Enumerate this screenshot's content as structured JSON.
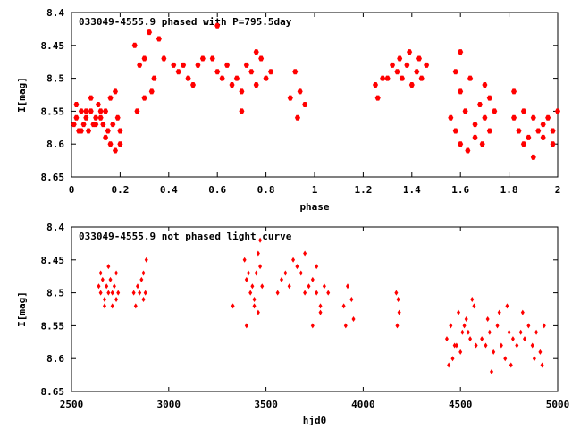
{
  "chart_data": [
    {
      "type": "scatter",
      "title": "033049-4555.9 phased with P=795.5day",
      "xlabel": "phase",
      "ylabel": "I[mag]",
      "xlim": [
        0,
        2
      ],
      "ylim": [
        8.65,
        8.4
      ],
      "y_inverted": true,
      "xticks": [
        "0",
        "0.2",
        "0.4",
        "0.6",
        "0.8",
        "1",
        "1.2",
        "1.4",
        "1.6",
        "1.8",
        "2"
      ],
      "yticks": [
        "8.4",
        "8.45",
        "8.5",
        "8.55",
        "8.6",
        "8.65"
      ],
      "grid": false,
      "marker_color": "#ff0000",
      "marker": "filled-hexagon",
      "series": [
        {
          "points": [
            [
              0.01,
              8.57
            ],
            [
              0.02,
              8.56
            ],
            [
              0.03,
              8.58
            ],
            [
              0.04,
              8.55
            ],
            [
              0.05,
              8.57
            ],
            [
              0.06,
              8.56
            ],
            [
              0.07,
              8.58
            ],
            [
              0.08,
              8.55
            ],
            [
              0.09,
              8.57
            ],
            [
              0.1,
              8.56
            ],
            [
              0.11,
              8.54
            ],
            [
              0.12,
              8.56
            ],
            [
              0.13,
              8.57
            ],
            [
              0.14,
              8.55
            ],
            [
              0.15,
              8.58
            ],
            [
              0.16,
              8.53
            ],
            [
              0.17,
              8.57
            ],
            [
              0.18,
              8.52
            ],
            [
              0.19,
              8.56
            ],
            [
              0.2,
              8.58
            ],
            [
              0.02,
              8.54
            ],
            [
              0.04,
              8.58
            ],
            [
              0.06,
              8.55
            ],
            [
              0.08,
              8.53
            ],
            [
              0.1,
              8.57
            ],
            [
              0.12,
              8.55
            ],
            [
              0.14,
              8.59
            ],
            [
              0.16,
              8.6
            ],
            [
              0.18,
              8.61
            ],
            [
              0.2,
              8.6
            ],
            [
              0.26,
              8.45
            ],
            [
              0.28,
              8.48
            ],
            [
              0.3,
              8.47
            ],
            [
              0.32,
              8.43
            ],
            [
              0.34,
              8.5
            ],
            [
              0.36,
              8.44
            ],
            [
              0.38,
              8.47
            ],
            [
              0.3,
              8.53
            ],
            [
              0.33,
              8.52
            ],
            [
              0.27,
              8.55
            ],
            [
              0.42,
              8.48
            ],
            [
              0.44,
              8.49
            ],
            [
              0.46,
              8.48
            ],
            [
              0.48,
              8.5
            ],
            [
              0.5,
              8.51
            ],
            [
              0.52,
              8.48
            ],
            [
              0.54,
              8.47
            ],
            [
              0.58,
              8.47
            ],
            [
              0.6,
              8.49
            ],
            [
              0.62,
              8.5
            ],
            [
              0.64,
              8.48
            ],
            [
              0.66,
              8.51
            ],
            [
              0.68,
              8.5
            ],
            [
              0.7,
              8.52
            ],
            [
              0.72,
              8.48
            ],
            [
              0.74,
              8.49
            ],
            [
              0.76,
              8.51
            ],
            [
              0.78,
              8.47
            ],
            [
              0.8,
              8.5
            ],
            [
              0.82,
              8.49
            ],
            [
              0.6,
              8.42
            ],
            [
              0.7,
              8.55
            ],
            [
              0.76,
              8.46
            ],
            [
              0.9,
              8.53
            ],
            [
              0.92,
              8.49
            ],
            [
              0.94,
              8.52
            ],
            [
              0.96,
              8.54
            ],
            [
              0.93,
              8.56
            ],
            [
              1.25,
              8.51
            ],
            [
              1.26,
              8.53
            ],
            [
              1.28,
              8.5
            ],
            [
              1.3,
              8.5
            ],
            [
              1.32,
              8.48
            ],
            [
              1.34,
              8.49
            ],
            [
              1.36,
              8.5
            ],
            [
              1.38,
              8.48
            ],
            [
              1.4,
              8.51
            ],
            [
              1.42,
              8.49
            ],
            [
              1.44,
              8.5
            ],
            [
              1.46,
              8.48
            ],
            [
              1.35,
              8.47
            ],
            [
              1.39,
              8.46
            ],
            [
              1.43,
              8.47
            ],
            [
              1.56,
              8.56
            ],
            [
              1.58,
              8.58
            ],
            [
              1.6,
              8.52
            ],
            [
              1.62,
              8.55
            ],
            [
              1.64,
              8.5
            ],
            [
              1.66,
              8.57
            ],
            [
              1.68,
              8.54
            ],
            [
              1.7,
              8.56
            ],
            [
              1.72,
              8.53
            ],
            [
              1.74,
              8.55
            ],
            [
              1.6,
              8.6
            ],
            [
              1.63,
              8.61
            ],
            [
              1.66,
              8.59
            ],
            [
              1.69,
              8.6
            ],
            [
              1.72,
              8.58
            ],
            [
              1.6,
              8.46
            ],
            [
              1.58,
              8.49
            ],
            [
              1.7,
              8.51
            ],
            [
              1.82,
              8.56
            ],
            [
              1.84,
              8.58
            ],
            [
              1.86,
              8.55
            ],
            [
              1.88,
              8.59
            ],
            [
              1.9,
              8.56
            ],
            [
              1.92,
              8.58
            ],
            [
              1.94,
              8.57
            ],
            [
              1.96,
              8.56
            ],
            [
              1.98,
              8.58
            ],
            [
              2.0,
              8.55
            ],
            [
              1.82,
              8.52
            ],
            [
              1.86,
              8.6
            ],
            [
              1.9,
              8.62
            ],
            [
              1.94,
              8.59
            ],
            [
              1.98,
              8.6
            ]
          ]
        }
      ]
    },
    {
      "type": "scatter",
      "title": "033049-4555.9 not phased light curve",
      "xlabel": "hjd0",
      "ylabel": "I[mag]",
      "xlim": [
        2500,
        5000
      ],
      "ylim": [
        8.65,
        8.4
      ],
      "y_inverted": true,
      "xticks": [
        "2500",
        "3000",
        "3500",
        "4000",
        "4500",
        "5000"
      ],
      "yticks": [
        "8.4",
        "8.45",
        "8.5",
        "8.55",
        "8.6",
        "8.65"
      ],
      "grid": false,
      "marker_color": "#ff0000",
      "marker": "filled-diamond",
      "series": [
        {
          "points": [
            [
              2640,
              8.49
            ],
            [
              2650,
              8.5
            ],
            [
              2660,
              8.48
            ],
            [
              2670,
              8.51
            ],
            [
              2680,
              8.49
            ],
            [
              2690,
              8.5
            ],
            [
              2700,
              8.48
            ],
            [
              2710,
              8.5
            ],
            [
              2720,
              8.49
            ],
            [
              2730,
              8.51
            ],
            [
              2650,
              8.47
            ],
            [
              2670,
              8.52
            ],
            [
              2690,
              8.46
            ],
            [
              2710,
              8.52
            ],
            [
              2730,
              8.47
            ],
            [
              2740,
              8.5
            ],
            [
              2820,
              8.5
            ],
            [
              2830,
              8.52
            ],
            [
              2840,
              8.49
            ],
            [
              2850,
              8.5
            ],
            [
              2860,
              8.48
            ],
            [
              2870,
              8.51
            ],
            [
              2880,
              8.5
            ],
            [
              2885,
              8.45
            ],
            [
              2870,
              8.47
            ],
            [
              3330,
              8.52
            ],
            [
              3390,
              8.45
            ],
            [
              3400,
              8.48
            ],
            [
              3410,
              8.47
            ],
            [
              3420,
              8.5
            ],
            [
              3430,
              8.49
            ],
            [
              3440,
              8.51
            ],
            [
              3450,
              8.47
            ],
            [
              3460,
              8.44
            ],
            [
              3470,
              8.46
            ],
            [
              3480,
              8.49
            ],
            [
              3400,
              8.55
            ],
            [
              3440,
              8.52
            ],
            [
              3460,
              8.53
            ],
            [
              3470,
              8.42
            ],
            [
              3560,
              8.5
            ],
            [
              3580,
              8.48
            ],
            [
              3600,
              8.47
            ],
            [
              3620,
              8.49
            ],
            [
              3640,
              8.45
            ],
            [
              3660,
              8.46
            ],
            [
              3680,
              8.47
            ],
            [
              3700,
              8.5
            ],
            [
              3720,
              8.49
            ],
            [
              3740,
              8.48
            ],
            [
              3760,
              8.5
            ],
            [
              3780,
              8.52
            ],
            [
              3800,
              8.49
            ],
            [
              3820,
              8.5
            ],
            [
              3740,
              8.55
            ],
            [
              3780,
              8.53
            ],
            [
              3700,
              8.44
            ],
            [
              3760,
              8.46
            ],
            [
              3900,
              8.52
            ],
            [
              3920,
              8.49
            ],
            [
              3940,
              8.51
            ],
            [
              3950,
              8.54
            ],
            [
              3910,
              8.55
            ],
            [
              4170,
              8.5
            ],
            [
              4180,
              8.51
            ],
            [
              4175,
              8.55
            ],
            [
              4185,
              8.53
            ],
            [
              4430,
              8.57
            ],
            [
              4450,
              8.55
            ],
            [
              4470,
              8.58
            ],
            [
              4490,
              8.53
            ],
            [
              4510,
              8.56
            ],
            [
              4530,
              8.54
            ],
            [
              4550,
              8.57
            ],
            [
              4570,
              8.52
            ],
            [
              4440,
              8.61
            ],
            [
              4460,
              8.6
            ],
            [
              4480,
              8.58
            ],
            [
              4500,
              8.59
            ],
            [
              4520,
              8.55
            ],
            [
              4540,
              8.56
            ],
            [
              4560,
              8.51
            ],
            [
              4580,
              8.58
            ],
            [
              4610,
              8.57
            ],
            [
              4630,
              8.58
            ],
            [
              4650,
              8.56
            ],
            [
              4670,
              8.59
            ],
            [
              4690,
              8.55
            ],
            [
              4710,
              8.58
            ],
            [
              4730,
              8.6
            ],
            [
              4750,
              8.56
            ],
            [
              4770,
              8.57
            ],
            [
              4790,
              8.58
            ],
            [
              4810,
              8.56
            ],
            [
              4830,
              8.57
            ],
            [
              4850,
              8.55
            ],
            [
              4870,
              8.58
            ],
            [
              4890,
              8.56
            ],
            [
              4910,
              8.59
            ],
            [
              4930,
              8.55
            ],
            [
              4640,
              8.54
            ],
            [
              4700,
              8.53
            ],
            [
              4760,
              8.61
            ],
            [
              4820,
              8.53
            ],
            [
              4880,
              8.6
            ],
            [
              4920,
              8.61
            ],
            [
              4660,
              8.62
            ],
            [
              4740,
              8.52
            ]
          ]
        }
      ]
    }
  ]
}
